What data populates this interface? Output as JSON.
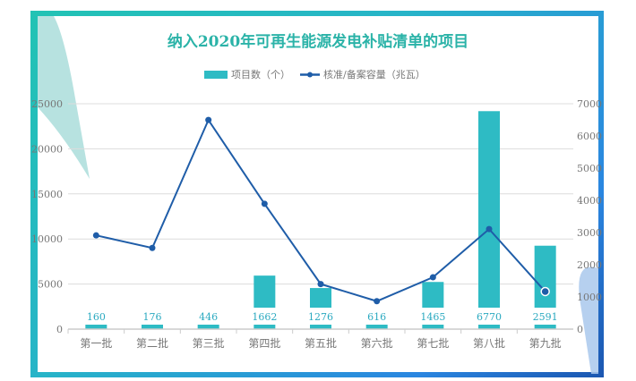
{
  "chart_data": {
    "type": "bar+line",
    "title": "纳入2020年可再生能源发电补贴清单的项目",
    "categories": [
      "第一批",
      "第二批",
      "第三批",
      "第四批",
      "第五批",
      "第六批",
      "第七批",
      "第八批",
      "第九批"
    ],
    "series": [
      {
        "name": "项目数（个）",
        "type": "bar",
        "axis": "right",
        "values": [
          160,
          176,
          446,
          1662,
          1276,
          616,
          1465,
          6770,
          2591
        ],
        "data_labels": [
          "160",
          "176",
          "446",
          "1662",
          "1276",
          "616",
          "1465",
          "6770",
          "2591"
        ]
      },
      {
        "name": "核准/备案容量（兆瓦）",
        "type": "line",
        "axis": "left",
        "values": [
          10400,
          9000,
          23200,
          13900,
          5000,
          3100,
          5750,
          11100,
          4170
        ]
      }
    ],
    "left_axis": {
      "ylim": [
        0,
        25000
      ],
      "ticks": [
        "0",
        "5000",
        "10000",
        "15000",
        "20000",
        "25000"
      ]
    },
    "right_axis": {
      "ylim": [
        0,
        7000
      ],
      "ticks": [
        "0",
        "1000",
        "2000",
        "3000",
        "4000",
        "5000",
        "6000",
        "7000"
      ]
    },
    "legend": "top-center",
    "grid": true,
    "colors": {
      "bar": "#2ebbc4",
      "line": "#1f5da8",
      "title": "#2bb3a8",
      "axis_text": "#777777"
    }
  }
}
